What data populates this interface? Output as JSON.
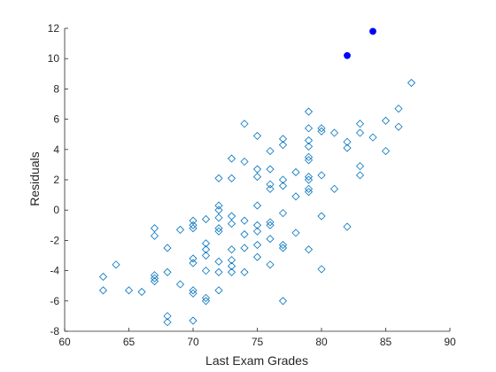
{
  "chart_data": {
    "type": "scatter",
    "title": "",
    "xlabel": "Last Exam Grades",
    "ylabel": "Residuals",
    "xlim": [
      60,
      90
    ],
    "ylim": [
      -8,
      12
    ],
    "xticks": [
      60,
      65,
      70,
      75,
      80,
      85,
      90
    ],
    "yticks": [
      -8,
      -6,
      -4,
      -2,
      0,
      2,
      4,
      6,
      8,
      10,
      12
    ],
    "grid": false,
    "legend": "none",
    "colors": {
      "marker": "#0072BD",
      "highlight": "#0000FF",
      "axis": "#262626"
    },
    "series": [
      {
        "marker": "diamond-open",
        "points": [
          [
            63,
            -4.4
          ],
          [
            63,
            -5.3
          ],
          [
            64,
            -3.6
          ],
          [
            65,
            -5.3
          ],
          [
            66,
            -5.4
          ],
          [
            67,
            -1.2
          ],
          [
            67,
            -1.7
          ],
          [
            67,
            -4.3
          ],
          [
            67,
            -4.5
          ],
          [
            67,
            -4.7
          ],
          [
            68,
            -2.5
          ],
          [
            68,
            -4.1
          ],
          [
            68,
            -7.0
          ],
          [
            68,
            -7.4
          ],
          [
            69,
            -1.3
          ],
          [
            69,
            -4.9
          ],
          [
            70,
            -0.7
          ],
          [
            70,
            -1.0
          ],
          [
            70,
            -1.2
          ],
          [
            70,
            -3.2
          ],
          [
            70,
            -3.5
          ],
          [
            70,
            -5.3
          ],
          [
            70,
            -5.5
          ],
          [
            70,
            -7.3
          ],
          [
            71,
            -0.6
          ],
          [
            71,
            -2.2
          ],
          [
            71,
            -2.6
          ],
          [
            71,
            -3.0
          ],
          [
            71,
            -4.0
          ],
          [
            71,
            -5.8
          ],
          [
            71,
            -6.0
          ],
          [
            72,
            2.1
          ],
          [
            72,
            0.3
          ],
          [
            72,
            0.0
          ],
          [
            72,
            -0.5
          ],
          [
            72,
            -1.2
          ],
          [
            72,
            -1.4
          ],
          [
            72,
            -3.4
          ],
          [
            72,
            -4.1
          ],
          [
            72,
            -5.3
          ],
          [
            73,
            3.4
          ],
          [
            73,
            2.1
          ],
          [
            73,
            -0.4
          ],
          [
            73,
            -0.9
          ],
          [
            73,
            -2.6
          ],
          [
            73,
            -3.3
          ],
          [
            73,
            -3.7
          ],
          [
            73,
            -4.1
          ],
          [
            74,
            5.7
          ],
          [
            74,
            3.2
          ],
          [
            74,
            -0.7
          ],
          [
            74,
            -1.6
          ],
          [
            74,
            -2.5
          ],
          [
            74,
            -4.1
          ],
          [
            75,
            4.9
          ],
          [
            75,
            2.7
          ],
          [
            75,
            2.2
          ],
          [
            75,
            0.3
          ],
          [
            75,
            -1.0
          ],
          [
            75,
            -1.4
          ],
          [
            75,
            -2.3
          ],
          [
            75,
            -3.1
          ],
          [
            76,
            3.9
          ],
          [
            76,
            2.7
          ],
          [
            76,
            1.7
          ],
          [
            76,
            1.4
          ],
          [
            76,
            -0.8
          ],
          [
            76,
            -1.0
          ],
          [
            76,
            -1.9
          ],
          [
            76,
            -3.6
          ],
          [
            77,
            4.7
          ],
          [
            77,
            4.3
          ],
          [
            77,
            2.0
          ],
          [
            77,
            1.6
          ],
          [
            77,
            -0.2
          ],
          [
            77,
            -2.3
          ],
          [
            77,
            -2.5
          ],
          [
            77,
            -6.0
          ],
          [
            78,
            2.5
          ],
          [
            78,
            0.9
          ],
          [
            78,
            -1.5
          ],
          [
            79,
            6.5
          ],
          [
            79,
            5.4
          ],
          [
            79,
            4.6
          ],
          [
            79,
            4.2
          ],
          [
            79,
            3.5
          ],
          [
            79,
            3.3
          ],
          [
            79,
            2.2
          ],
          [
            79,
            2.0
          ],
          [
            79,
            1.4
          ],
          [
            79,
            1.2
          ],
          [
            79,
            -2.6
          ],
          [
            80,
            5.4
          ],
          [
            80,
            5.2
          ],
          [
            80,
            2.3
          ],
          [
            80,
            -0.4
          ],
          [
            80,
            -3.9
          ],
          [
            81,
            5.1
          ],
          [
            81,
            1.4
          ],
          [
            82,
            4.5
          ],
          [
            82,
            4.1
          ],
          [
            82,
            -1.1
          ],
          [
            83,
            5.7
          ],
          [
            83,
            5.1
          ],
          [
            83,
            2.9
          ],
          [
            83,
            2.3
          ],
          [
            84,
            4.8
          ],
          [
            85,
            5.9
          ],
          [
            85,
            3.9
          ],
          [
            86,
            6.7
          ],
          [
            86,
            5.5
          ],
          [
            87,
            8.4
          ]
        ]
      },
      {
        "marker": "filled-dot",
        "points": [
          [
            82,
            10.2
          ],
          [
            84,
            11.8
          ]
        ]
      }
    ]
  }
}
